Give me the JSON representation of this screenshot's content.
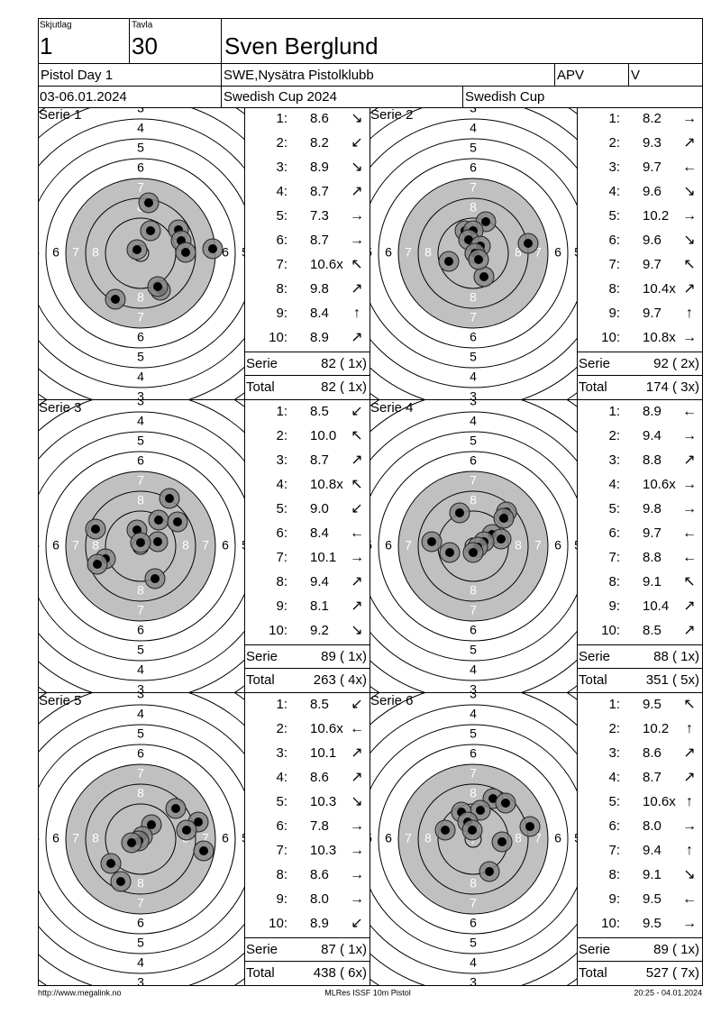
{
  "header": {
    "squad_label": "Skjutlag",
    "squad": "1",
    "target_label": "Tavla",
    "target": "30",
    "name": "Sven Berglund",
    "event": "Pistol Day 1",
    "club": "SWE,Nysätra Pistolklubb",
    "class": "APV",
    "category": "V",
    "date": "03-06.01.2024",
    "competition": "Swedish Cup 2024",
    "cup": "Swedish Cup"
  },
  "ring_labels": [
    "3",
    "4",
    "5",
    "6",
    "7",
    "8"
  ],
  "shot_labels": [
    "1:",
    "2:",
    "3:",
    "4:",
    "5:",
    "6:",
    "7:",
    "8:",
    "9:",
    "10:"
  ],
  "serie_label": "Serie",
  "total_label": "Total",
  "series": [
    {
      "name": "Serie 1",
      "shots": [
        "8.6",
        "8.2",
        "8.9",
        "8.7",
        "7.3",
        "8.7",
        "10.6x",
        "9.8",
        "8.4",
        "8.9"
      ],
      "arrows": [
        "↘",
        "↙",
        "↘",
        "↗",
        "→",
        "→",
        "↖",
        "↗",
        "↑",
        "↗"
      ],
      "serie": "82 ( 1x)",
      "total": "82 ( 1x)"
    },
    {
      "name": "Serie 2",
      "shots": [
        "8.2",
        "9.3",
        "9.7",
        "9.6",
        "10.2",
        "9.6",
        "9.7",
        "10.4x",
        "9.7",
        "10.8x"
      ],
      "arrows": [
        "→",
        "↗",
        "←",
        "↘",
        "→",
        "↘",
        "↖",
        "↗",
        "↑",
        "→"
      ],
      "serie": "92 ( 2x)",
      "total": "174 ( 3x)"
    },
    {
      "name": "Serie 3",
      "shots": [
        "8.5",
        "10.0",
        "8.7",
        "10.8x",
        "9.0",
        "8.4",
        "10.1",
        "9.4",
        "8.1",
        "9.2"
      ],
      "arrows": [
        "↙",
        "↖",
        "↗",
        "↖",
        "↙",
        "←",
        "→",
        "↗",
        "↗",
        "↘"
      ],
      "serie": "89 ( 1x)",
      "total": "263 ( 4x)"
    },
    {
      "name": "Serie 4",
      "shots": [
        "8.9",
        "9.4",
        "8.8",
        "10.6x",
        "9.8",
        "9.7",
        "8.8",
        "9.1",
        "10.4",
        "8.5"
      ],
      "arrows": [
        "←",
        "→",
        "↗",
        "→",
        "→",
        "←",
        "←",
        "↖",
        "↗",
        "↗"
      ],
      "serie": "88 ( 1x)",
      "total": "351 ( 5x)"
    },
    {
      "name": "Serie 5",
      "shots": [
        "8.5",
        "10.6x",
        "10.1",
        "8.6",
        "10.3",
        "7.8",
        "10.3",
        "8.6",
        "8.0",
        "8.9"
      ],
      "arrows": [
        "↙",
        "←",
        "↗",
        "↗",
        "↘",
        "→",
        "→",
        "→",
        "→",
        "↙"
      ],
      "serie": "87 ( 1x)",
      "total": "438 ( 6x)"
    },
    {
      "name": "Serie 6",
      "shots": [
        "9.5",
        "10.2",
        "8.6",
        "8.7",
        "10.6x",
        "8.0",
        "9.4",
        "9.1",
        "9.5",
        "9.5"
      ],
      "arrows": [
        "↖",
        "↑",
        "↗",
        "↗",
        "↑",
        "→",
        "↑",
        "↘",
        "←",
        "→"
      ],
      "serie": "89 ( 1x)",
      "total": "527 ( 7x)"
    }
  ],
  "footer": {
    "left": "http://www.megalink.no",
    "center": "MLRes ISSF 10m Pistol",
    "right": "20:25 - 04.01.2024"
  }
}
